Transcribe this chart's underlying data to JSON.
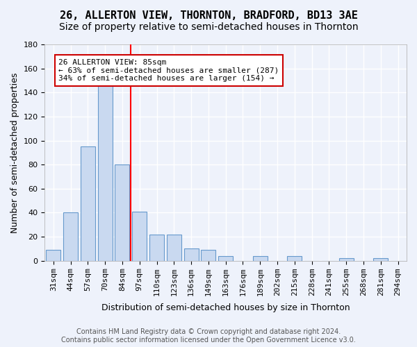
{
  "title": "26, ALLERTON VIEW, THORNTON, BRADFORD, BD13 3AE",
  "subtitle": "Size of property relative to semi-detached houses in Thornton",
  "xlabel": "Distribution of semi-detached houses by size in Thornton",
  "ylabel": "Number of semi-detached properties",
  "categories": [
    "31sqm",
    "44sqm",
    "57sqm",
    "70sqm",
    "84sqm",
    "97sqm",
    "110sqm",
    "123sqm",
    "136sqm",
    "149sqm",
    "163sqm",
    "176sqm",
    "189sqm",
    "202sqm",
    "215sqm",
    "228sqm",
    "241sqm",
    "255sqm",
    "268sqm",
    "281sqm",
    "294sqm"
  ],
  "values": [
    9,
    40,
    95,
    146,
    80,
    41,
    22,
    22,
    10,
    9,
    4,
    0,
    4,
    0,
    4,
    0,
    0,
    2,
    0,
    2,
    0
  ],
  "bar_color": "#c9d9f0",
  "bar_edge_color": "#6699cc",
  "background_color": "#eef2fb",
  "grid_color": "#ffffff",
  "annotation_text": "26 ALLERTON VIEW: 85sqm\n← 63% of semi-detached houses are smaller (287)\n34% of semi-detached houses are larger (154) →",
  "annotation_box_color": "#ffffff",
  "annotation_box_edge_color": "#cc0000",
  "redline_x": 4.5,
  "ylim": [
    0,
    180
  ],
  "yticks": [
    0,
    20,
    40,
    60,
    80,
    100,
    120,
    140,
    160,
    180
  ],
  "footer": "Contains HM Land Registry data © Crown copyright and database right 2024.\nContains public sector information licensed under the Open Government Licence v3.0.",
  "title_fontsize": 11,
  "subtitle_fontsize": 10,
  "ylabel_fontsize": 9,
  "xlabel_fontsize": 9,
  "tick_fontsize": 8
}
